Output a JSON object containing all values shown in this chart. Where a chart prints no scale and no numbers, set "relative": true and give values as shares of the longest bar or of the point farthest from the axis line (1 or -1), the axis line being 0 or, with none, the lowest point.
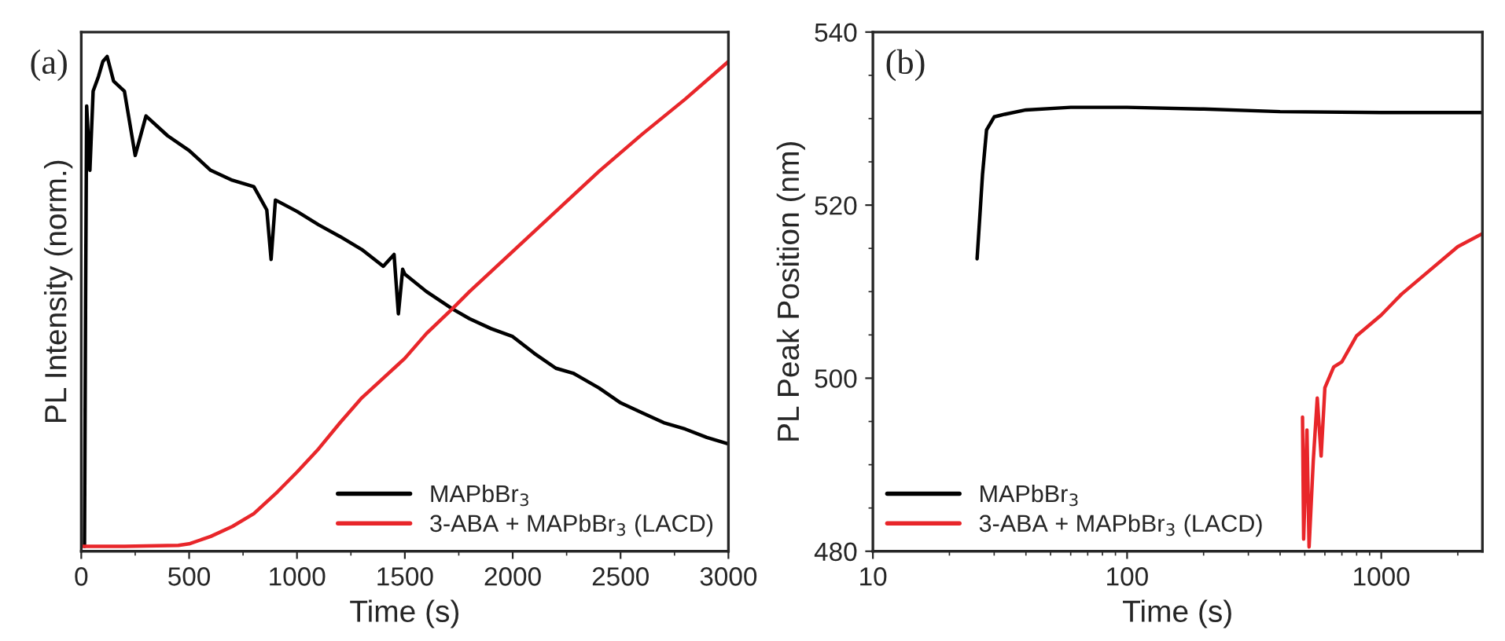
{
  "chart_data": [
    {
      "type": "line",
      "xlabel": "Time (s)",
      "ylabel": "PL Intensity (norm.)",
      "annotations": [
        "(a)"
      ],
      "relative": true,
      "xlim": [
        0,
        3000
      ],
      "xticks": [
        0,
        500,
        1000,
        1500,
        2000,
        2500,
        3000
      ],
      "legend": "bottom right",
      "grid": false,
      "series": [
        {
          "name": "MAPbBr$_{3}$",
          "color": "#000000",
          "x": [
            15,
            20,
            25,
            40,
            55,
            80,
            100,
            120,
            150,
            200,
            250,
            300,
            400,
            500,
            600,
            700,
            800,
            860,
            880,
            900,
            1000,
            1100,
            1200,
            1300,
            1400,
            1450,
            1470,
            1490,
            1500,
            1600,
            1720,
            1800,
            1900,
            2000,
            2100,
            2200,
            2280,
            2300,
            2400,
            2500,
            2600,
            2700,
            2800,
            2900,
            3000
          ],
          "values": [
            0.01,
            0.5,
            0.9,
            0.77,
            0.93,
            0.96,
            0.99,
            1.0,
            0.95,
            0.93,
            0.8,
            0.88,
            0.84,
            0.81,
            0.77,
            0.75,
            0.737,
            0.69,
            0.59,
            0.71,
            0.687,
            0.66,
            0.636,
            0.61,
            0.576,
            0.6,
            0.48,
            0.57,
            0.56,
            0.525,
            0.49,
            0.47,
            0.45,
            0.434,
            0.4,
            0.37,
            0.36,
            0.355,
            0.33,
            0.3,
            0.28,
            0.26,
            0.247,
            0.23,
            0.217
          ]
        },
        {
          "name": "3-ABA + MAPbBr$_{3}$ (LACD)",
          "color": "#e8262a",
          "x": [
            0,
            200,
            450,
            500,
            600,
            700,
            800,
            900,
            1000,
            1100,
            1200,
            1300,
            1400,
            1500,
            1600,
            1720,
            1800,
            2000,
            2200,
            2400,
            2600,
            2800,
            3000
          ],
          "values": [
            0.01,
            0.01,
            0.012,
            0.015,
            0.03,
            0.05,
            0.076,
            0.116,
            0.16,
            0.207,
            0.26,
            0.31,
            0.35,
            0.39,
            0.44,
            0.49,
            0.525,
            0.606,
            0.687,
            0.768,
            0.843,
            0.914,
            0.99
          ]
        }
      ]
    },
    {
      "type": "line",
      "xlabel": "Time (s)",
      "ylabel": "PL Peak Position (nm)",
      "annotations": [
        "(b)"
      ],
      "log": "x",
      "xlim": [
        10,
        2500
      ],
      "xticks": [
        10,
        100,
        1000
      ],
      "ylim": [
        480,
        540
      ],
      "yticks": [
        480,
        500,
        520,
        540
      ],
      "legend": "bottom left",
      "grid": false,
      "series": [
        {
          "name": "MAPbBr$_{3}$",
          "color": "#000000",
          "x": [
            25.7,
            27,
            28,
            30,
            33,
            40,
            60,
            100,
            200,
            400,
            1000,
            2500
          ],
          "values": [
            513.8,
            523.6,
            528.7,
            530.2,
            530.5,
            531,
            531.3,
            531.3,
            531.1,
            530.8,
            530.7,
            530.7
          ]
        },
        {
          "name": "3-ABA + MAPbBr$_{3}$ (LACD)",
          "color": "#e8262a",
          "x": [
            490,
            495,
            510,
            520,
            540,
            560,
            580,
            600,
            650,
            700,
            800,
            1000,
            1200,
            1500,
            2000,
            2500
          ],
          "values": [
            495.5,
            481.4,
            494,
            480.5,
            490.4,
            497.7,
            491,
            498.9,
            501.3,
            501.9,
            504.9,
            507.3,
            509.7,
            512.1,
            515.2,
            516.7
          ]
        }
      ]
    }
  ]
}
